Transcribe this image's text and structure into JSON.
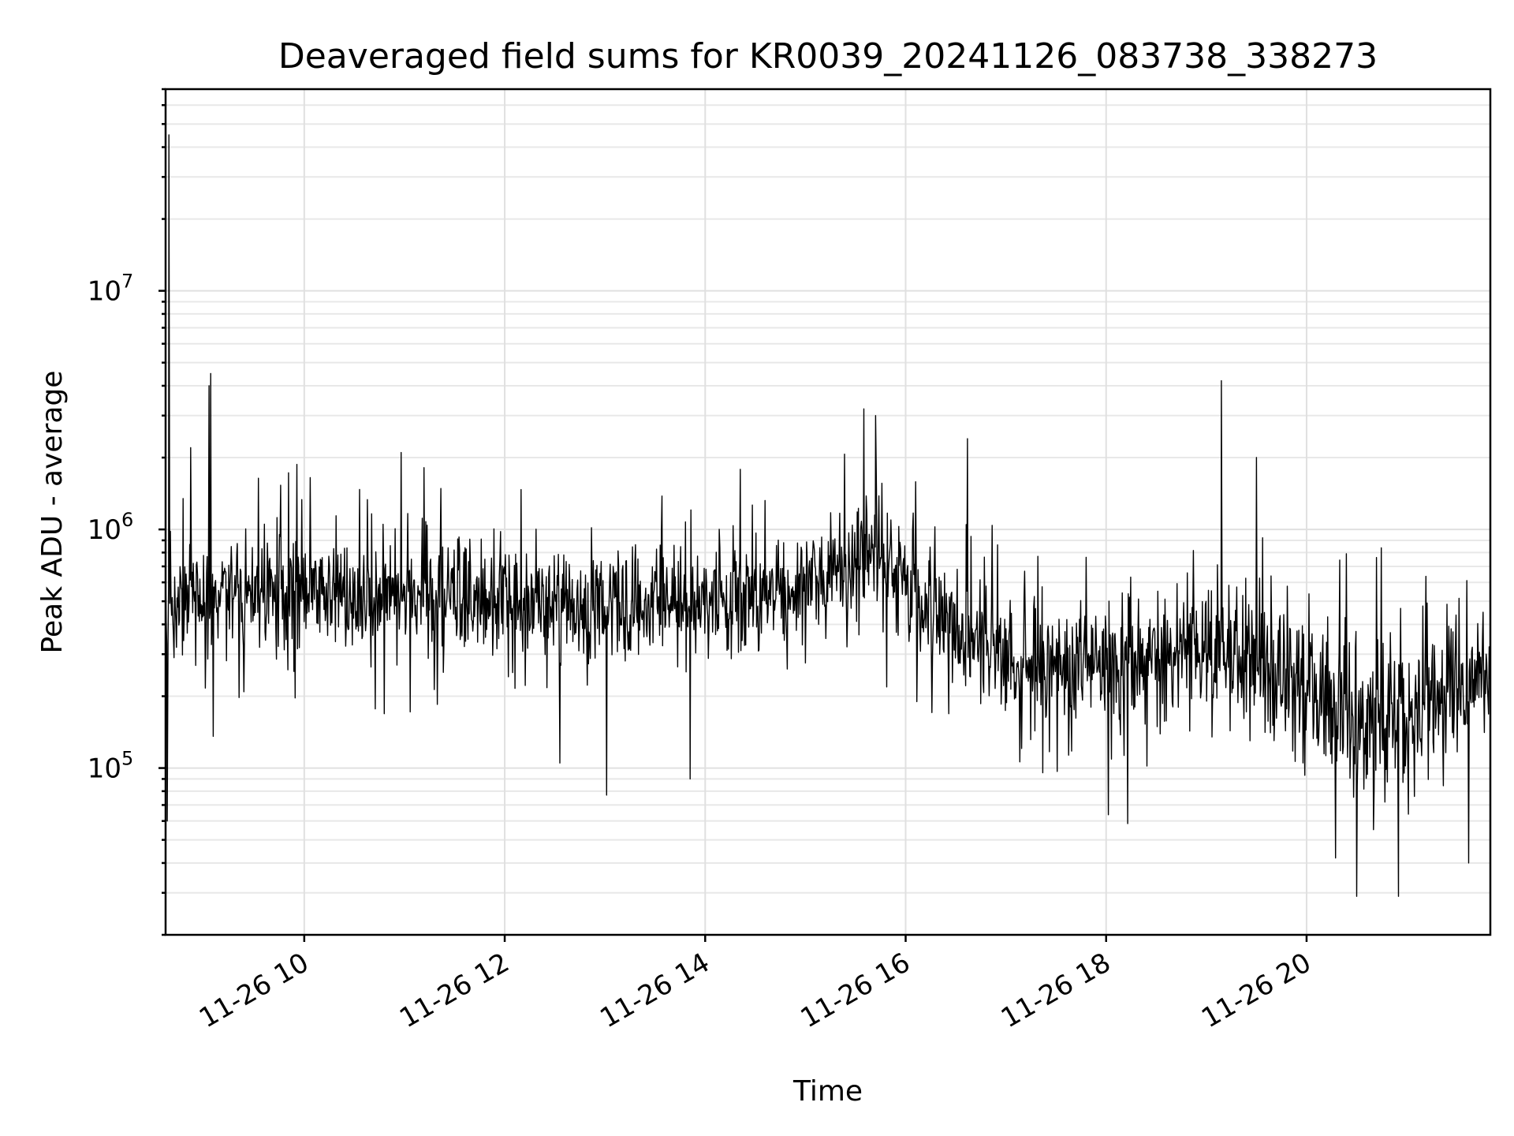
{
  "chart_data": {
    "type": "line",
    "title": "Deaveraged field sums for KR0039_20241126_083738_338273",
    "xlabel": "Time",
    "ylabel": "Peak ADU - average",
    "y_scale": "log",
    "grid": true,
    "x_range": [
      "2024-11-26 08:37",
      "2024-11-26 21:50"
    ],
    "ylim": [
      20000,
      70000000
    ],
    "x_tick_labels": [
      "11-26 10",
      "11-26 12",
      "11-26 14",
      "11-26 16",
      "11-26 18",
      "11-26 20"
    ],
    "x_ticks": [
      "2024-11-26 10:00",
      "2024-11-26 12:00",
      "2024-11-26 14:00",
      "2024-11-26 16:00",
      "2024-11-26 18:00",
      "2024-11-26 20:00"
    ],
    "y_tick_labels": [
      {
        "base": "10",
        "exp": "5",
        "value": 100000
      },
      {
        "base": "10",
        "exp": "6",
        "value": 1000000
      },
      {
        "base": "10",
        "exp": "7",
        "value": 10000000
      }
    ],
    "series": [
      {
        "color": "#000000",
        "trend": [
          {
            "t": "2024-11-26 08:37",
            "median": 500000,
            "spread": 0.35
          },
          {
            "t": "2024-11-26 09:30",
            "median": 550000,
            "spread": 0.3
          },
          {
            "t": "2024-11-26 11:00",
            "median": 520000,
            "spread": 0.3
          },
          {
            "t": "2024-11-26 12:30",
            "median": 480000,
            "spread": 0.32
          },
          {
            "t": "2024-11-26 14:00",
            "median": 500000,
            "spread": 0.3
          },
          {
            "t": "2024-11-26 15:00",
            "median": 550000,
            "spread": 0.3
          },
          {
            "t": "2024-11-26 15:45",
            "median": 850000,
            "spread": 0.3
          },
          {
            "t": "2024-11-26 16:20",
            "median": 400000,
            "spread": 0.33
          },
          {
            "t": "2024-11-26 17:15",
            "median": 270000,
            "spread": 0.33
          },
          {
            "t": "2024-11-26 18:30",
            "median": 300000,
            "spread": 0.33
          },
          {
            "t": "2024-11-26 19:30",
            "median": 280000,
            "spread": 0.38
          },
          {
            "t": "2024-11-26 20:30",
            "median": 160000,
            "spread": 0.42
          },
          {
            "t": "2024-11-26 21:50",
            "median": 250000,
            "spread": 0.38
          }
        ],
        "spikes": [
          {
            "t": "2024-11-26 08:39",
            "value": 45000000
          },
          {
            "t": "2024-11-26 08:38",
            "value": 60000
          },
          {
            "t": "2024-11-26 09:03",
            "value": 4000000
          },
          {
            "t": "2024-11-26 09:04",
            "value": 4500000
          },
          {
            "t": "2024-11-26 08:52",
            "value": 2200000
          },
          {
            "t": "2024-11-26 10:58",
            "value": 2100000
          },
          {
            "t": "2024-11-26 12:33",
            "value": 105000
          },
          {
            "t": "2024-11-26 13:01",
            "value": 77000
          },
          {
            "t": "2024-11-26 13:51",
            "value": 90000
          },
          {
            "t": "2024-11-26 15:35",
            "value": 3200000
          },
          {
            "t": "2024-11-26 15:42",
            "value": 3000000
          },
          {
            "t": "2024-11-26 16:37",
            "value": 2400000
          },
          {
            "t": "2024-11-26 19:09",
            "value": 4200000
          },
          {
            "t": "2024-11-26 19:30",
            "value": 2000000
          },
          {
            "t": "2024-11-26 20:30",
            "value": 29000
          },
          {
            "t": "2024-11-26 20:55",
            "value": 29000
          },
          {
            "t": "2024-11-26 21:37",
            "value": 40000
          }
        ]
      }
    ]
  }
}
